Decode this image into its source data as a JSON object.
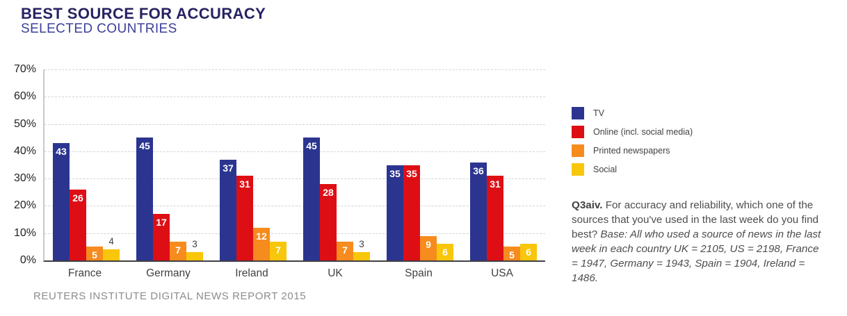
{
  "header": {
    "title": "BEST SOURCE FOR ACCURACY",
    "subtitle": "SELECTED COUNTRIES"
  },
  "footer": {
    "text": "REUTERS INSTITUTE DIGITAL NEWS REPORT 2015"
  },
  "note": {
    "q_label": "Q3aiv.",
    "q_text": " For accuracy and reliability, which one of the sources that you've used in the last week do you find best? ",
    "base_text": "Base: All who used a source of news in the last week in each country UK = 2105, US = 2198, France = 1947, Germany = 1943, Spain = 1904, Ireland = 1486."
  },
  "chart_data": {
    "type": "bar",
    "title": "BEST SOURCE FOR ACCURACY",
    "subtitle": "SELECTED COUNTRIES",
    "categories": [
      "France",
      "Germany",
      "Ireland",
      "UK",
      "Spain",
      "USA"
    ],
    "series": [
      {
        "name": "TV",
        "color": "#2B3590",
        "values": [
          43,
          45,
          37,
          45,
          35,
          36
        ]
      },
      {
        "name": "Online (incl. social media)",
        "color": "#DE0E15",
        "values": [
          26,
          17,
          31,
          28,
          35,
          31
        ]
      },
      {
        "name": "Printed newspapers",
        "color": "#F68B1E",
        "values": [
          5,
          7,
          12,
          7,
          9,
          5
        ]
      },
      {
        "name": "Social",
        "color": "#F8C60B",
        "values": [
          4,
          3,
          7,
          3,
          6,
          6
        ]
      }
    ],
    "xlabel": "",
    "ylabel": "",
    "y_ticks": [
      "0%",
      "10%",
      "20%",
      "30%",
      "40%",
      "50%",
      "60%",
      "70%"
    ],
    "ylim": [
      0,
      70
    ],
    "grid": "horizontal dashed",
    "legend_position": "right",
    "value_labels": "shown on every bar; white inside bar top, or dark above bar when value is small",
    "value_label_outside_threshold": 5
  }
}
